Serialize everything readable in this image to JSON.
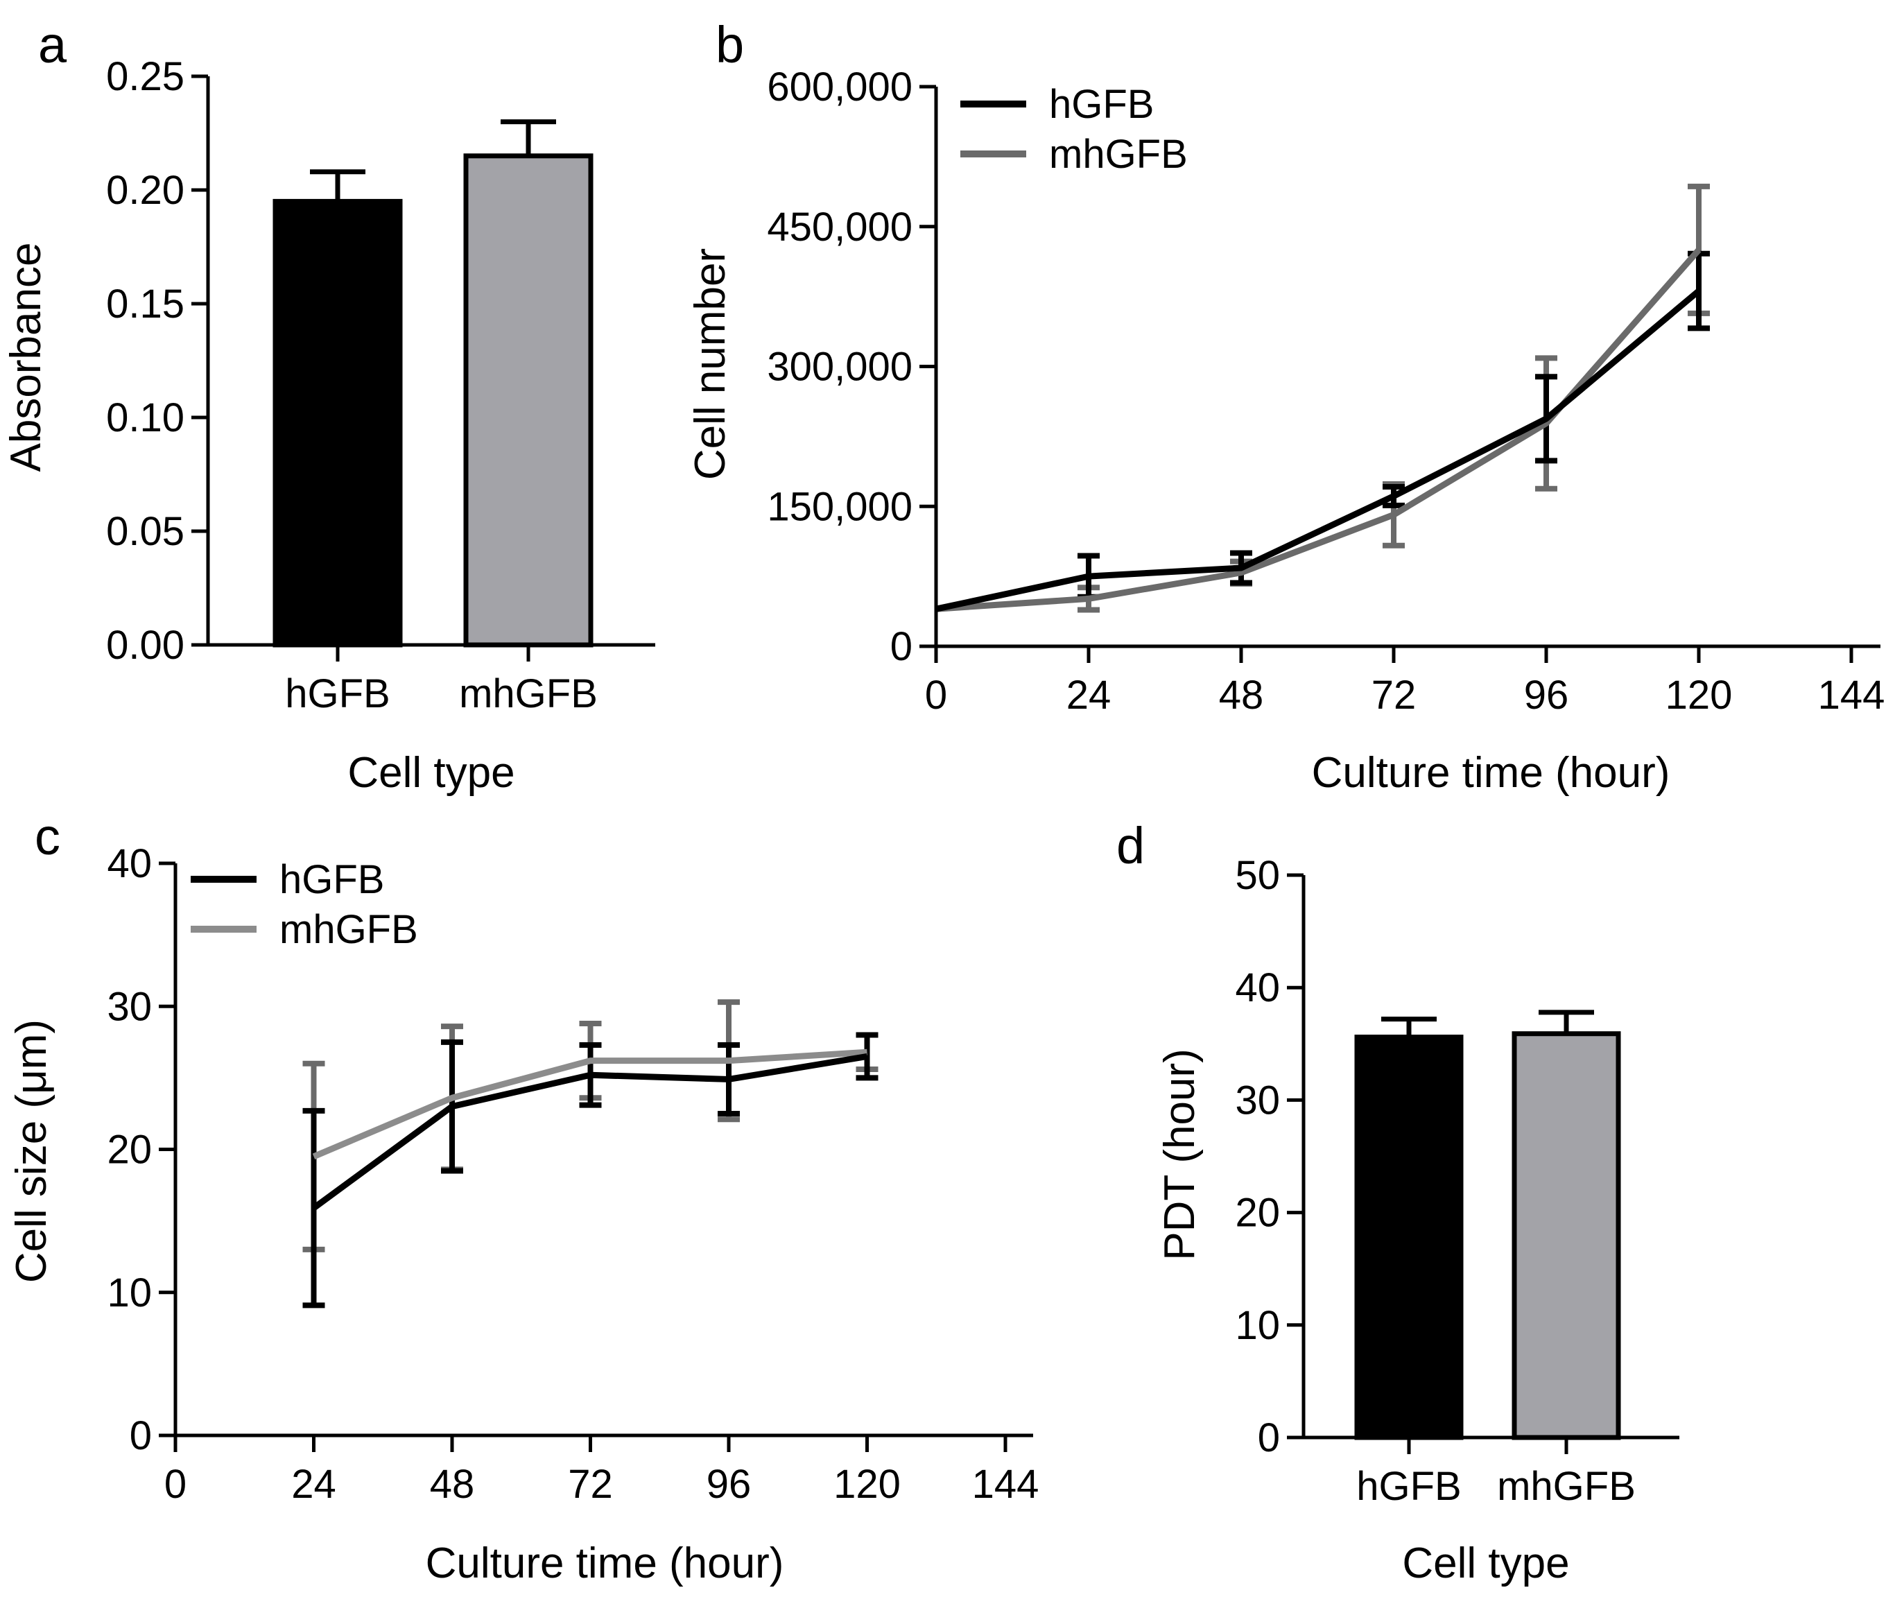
{
  "figure": {
    "panels": [
      "a",
      "b",
      "c",
      "d"
    ]
  },
  "colors": {
    "hGFB": "#000000",
    "mhGFB_bar": "#a3a3a8",
    "mhGFB_line_b": "#6a6a6a",
    "mhGFB_line_c": "#8c8c8c",
    "mhGFB_err_c": "#6a6a6a"
  },
  "chart_data": [
    {
      "panel": "a",
      "type": "bar",
      "title": "",
      "xlabel": "Cell type",
      "ylabel": "Absorbance",
      "categories": [
        "hGFB",
        "mhGFB"
      ],
      "values": [
        0.195,
        0.215
      ],
      "errors": [
        0.013,
        0.015
      ],
      "ylim": [
        0,
        0.25
      ],
      "yticks": [
        0.0,
        0.05,
        0.1,
        0.15,
        0.2,
        0.25
      ],
      "ytick_labels": [
        "0.00",
        "0.05",
        "0.10",
        "0.15",
        "0.20",
        "0.25"
      ],
      "legend": "none"
    },
    {
      "panel": "b",
      "type": "line",
      "title": "",
      "xlabel": "Culture time (hour)",
      "ylabel": "Cell number",
      "xlim": [
        0,
        144
      ],
      "ylim": [
        0,
        600000
      ],
      "xticks": [
        0,
        24,
        48,
        72,
        96,
        120,
        144
      ],
      "xtick_labels": [
        "0",
        "24",
        "48",
        "72",
        "96",
        "120",
        "144"
      ],
      "yticks": [
        0,
        150000,
        300000,
        450000,
        600000
      ],
      "ytick_labels": [
        "0",
        "150,000",
        "300,000",
        "450,000",
        "600,000"
      ],
      "legend": "top-left",
      "series": [
        {
          "name": "hGFB",
          "x": [
            0,
            24,
            48,
            72,
            96,
            120
          ],
          "values": [
            40000,
            75000,
            84000,
            161000,
            244000,
            381000
          ],
          "errors": [
            0,
            22000,
            16000,
            10000,
            45000,
            40000
          ]
        },
        {
          "name": "mhGFB",
          "x": [
            0,
            24,
            48,
            72,
            96,
            120
          ],
          "values": [
            40000,
            51000,
            79000,
            141000,
            239000,
            425000
          ],
          "errors": [
            0,
            12000,
            12000,
            33000,
            70000,
            68000
          ]
        }
      ]
    },
    {
      "panel": "c",
      "type": "line",
      "title": "",
      "xlabel": "Culture time (hour)",
      "ylabel": "Cell size (μm)",
      "xlim": [
        0,
        144
      ],
      "ylim": [
        0,
        40
      ],
      "xticks": [
        0,
        24,
        48,
        72,
        96,
        120,
        144
      ],
      "xtick_labels": [
        "0",
        "24",
        "48",
        "72",
        "96",
        "120",
        "144"
      ],
      "yticks": [
        0,
        10,
        20,
        30,
        40
      ],
      "ytick_labels": [
        "0",
        "10",
        "20",
        "30",
        "40"
      ],
      "legend": "top-left",
      "series": [
        {
          "name": "hGFB",
          "x": [
            24,
            48,
            72,
            96,
            120
          ],
          "values": [
            15.9,
            23.0,
            25.2,
            24.9,
            26.5
          ],
          "errors": [
            6.8,
            4.5,
            2.1,
            2.4,
            1.5
          ]
        },
        {
          "name": "mhGFB",
          "x": [
            24,
            48,
            72,
            96,
            120
          ],
          "values": [
            19.5,
            23.6,
            26.2,
            26.2,
            26.8
          ],
          "errors": [
            6.5,
            5.0,
            2.6,
            4.1,
            1.2
          ]
        }
      ]
    },
    {
      "panel": "d",
      "type": "bar",
      "title": "",
      "xlabel": "Cell type",
      "ylabel": "PDT (hour)",
      "categories": [
        "hGFB",
        "mhGFB"
      ],
      "values": [
        35.6,
        35.9
      ],
      "errors": [
        1.6,
        1.9
      ],
      "ylim": [
        0,
        50
      ],
      "yticks": [
        0,
        10,
        20,
        30,
        40,
        50
      ],
      "ytick_labels": [
        "0",
        "10",
        "20",
        "30",
        "40",
        "50"
      ],
      "legend": "none"
    }
  ]
}
